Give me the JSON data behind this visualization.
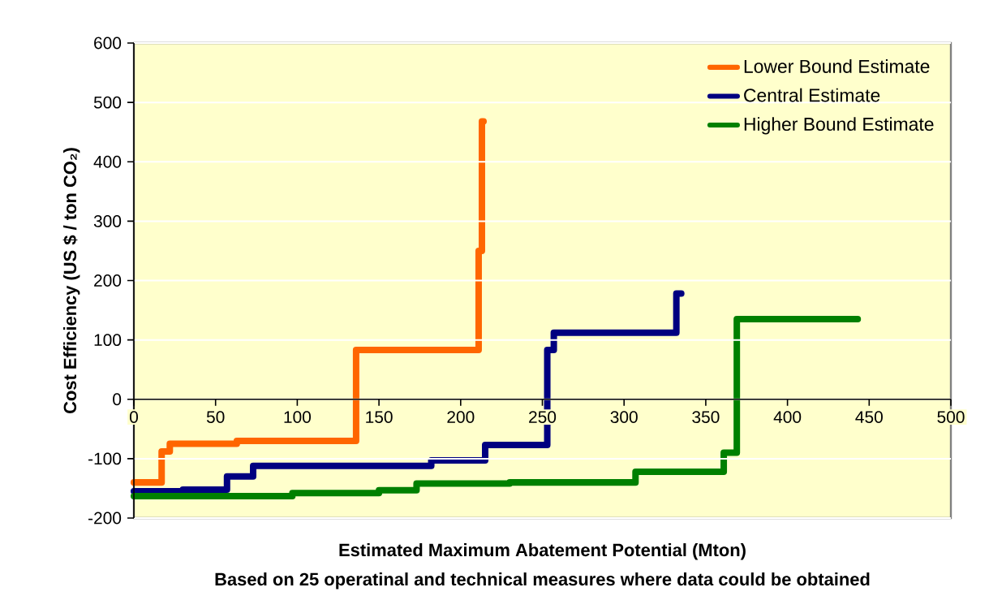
{
  "chart_data": {
    "type": "step",
    "xlabel": "Estimated Maximum Abatement Potential (Mton)",
    "ylabel": "Cost Efficiency (US $ / ton CO₂)",
    "annotations": [
      "Based on 25 operatinal and technical measures where data could be obtained"
    ],
    "xlim": [
      0,
      500
    ],
    "ylim": [
      -200,
      600
    ],
    "xticks": [
      0,
      50,
      100,
      150,
      200,
      250,
      300,
      350,
      400,
      450,
      500
    ],
    "yticks": [
      -200,
      -100,
      0,
      100,
      200,
      300,
      400,
      500,
      600
    ],
    "grid": "y",
    "legend": "top right",
    "series": [
      {
        "name": "Lower Bound Estimate",
        "color": "#ff6600",
        "x": [
          0,
          17,
          22,
          63,
          136,
          211,
          213,
          214
        ],
        "values": [
          -140,
          -88,
          -75,
          -70,
          83,
          250,
          468,
          468
        ]
      },
      {
        "name": "Central Estimate",
        "color": "#000080",
        "x": [
          0,
          30,
          57,
          73,
          182,
          215,
          253,
          257,
          332,
          335
        ],
        "values": [
          -155,
          -152,
          -130,
          -112,
          -103,
          -77,
          83,
          112,
          178,
          178
        ]
      },
      {
        "name": "Higher Bound Estimate",
        "color": "#008000",
        "x": [
          0,
          97,
          150,
          173,
          230,
          307,
          361,
          369,
          443
        ],
        "values": [
          -163,
          -158,
          -153,
          -142,
          -140,
          -122,
          -90,
          135,
          135
        ]
      }
    ]
  }
}
